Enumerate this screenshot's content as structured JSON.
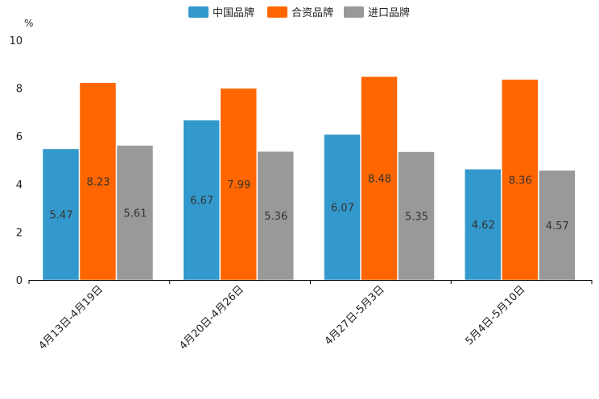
{
  "chart_data": {
    "type": "bar",
    "title": "",
    "xlabel": "",
    "ylabel": "",
    "y_unit": "%",
    "ylim": [
      0,
      10
    ],
    "yticks": [
      0,
      2,
      4,
      6,
      8,
      10
    ],
    "grid": false,
    "legend_position": "top-center",
    "categories": [
      "4月13日-4月19日",
      "4月20日-4月26日",
      "4月27日-5月3日",
      "5月4日-5月10日"
    ],
    "series": [
      {
        "name": "中国品牌",
        "color": "#3399cc",
        "values": [
          5.47,
          6.67,
          6.07,
          4.62
        ]
      },
      {
        "name": "合资品牌",
        "color": "#ff6600",
        "values": [
          8.23,
          7.99,
          8.48,
          8.36
        ]
      },
      {
        "name": "进口品牌",
        "color": "#999999",
        "values": [
          5.61,
          5.36,
          5.35,
          4.57
        ]
      }
    ],
    "value_label_color": "#333333",
    "axis_color": "#000000"
  }
}
